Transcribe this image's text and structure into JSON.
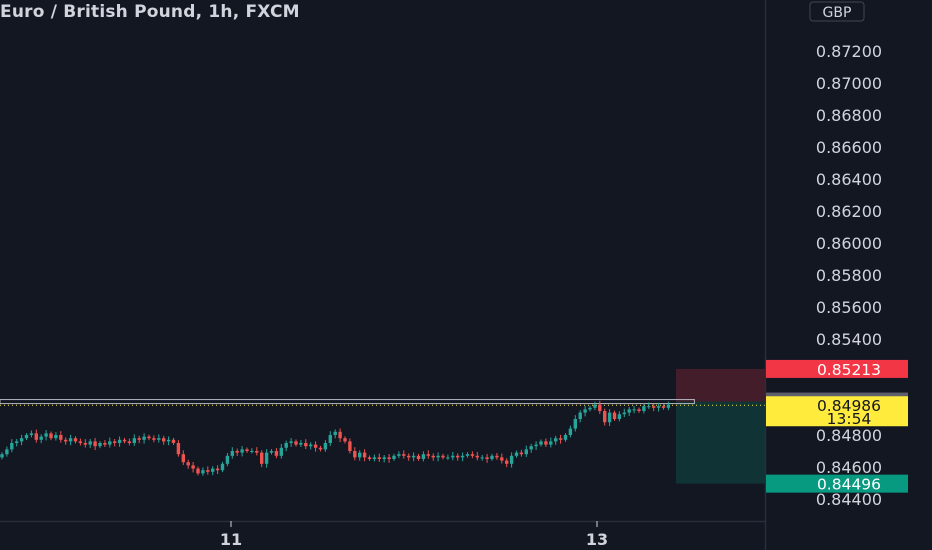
{
  "header": {
    "title": "Euro / British Pound, 1h, FXCM"
  },
  "currency_button": {
    "label": "GBP"
  },
  "colors": {
    "background": "#131722",
    "text": "#d1d4dc",
    "up": "#26a69a",
    "down": "#ef5350",
    "stop_loss_tag": "#f23645",
    "take_profit_tag": "#089981",
    "price_tag": "#ffeb3b",
    "entry_tag": "#5d606b"
  },
  "chart_data": {
    "type": "candlestick",
    "title": "Euro / British Pound, 1h, FXCM",
    "symbol": "EURGBP",
    "timeframe": "1h",
    "source": "FXCM",
    "currency": "GBP",
    "y_axis": {
      "ylim": [
        0.8432,
        0.8752
      ],
      "ticks": [
        "0.87200",
        "0.87000",
        "0.86800",
        "0.86600",
        "0.86400",
        "0.86200",
        "0.86000",
        "0.85800",
        "0.85600",
        "0.85400",
        "0.84800",
        "0.84600",
        "0.84400"
      ],
      "position": "right"
    },
    "x_axis": {
      "ticks": [
        "11",
        "13"
      ]
    },
    "closes": [
      0.8468,
      0.8471,
      0.8475,
      0.8476,
      0.8478,
      0.848,
      0.8481,
      0.8477,
      0.8479,
      0.8481,
      0.8478,
      0.848,
      0.8477,
      0.8476,
      0.8478,
      0.8476,
      0.8475,
      0.8474,
      0.8476,
      0.8473,
      0.8475,
      0.8474,
      0.8476,
      0.8475,
      0.8477,
      0.8476,
      0.8475,
      0.8478,
      0.8477,
      0.8479,
      0.8478,
      0.8477,
      0.8478,
      0.8476,
      0.8477,
      0.8475,
      0.8468,
      0.8463,
      0.8461,
      0.8459,
      0.8456,
      0.8458,
      0.8457,
      0.8459,
      0.8458,
      0.8462,
      0.8467,
      0.847,
      0.8469,
      0.8471,
      0.847,
      0.847,
      0.8469,
      0.8462,
      0.8469,
      0.847,
      0.8467,
      0.8472,
      0.8475,
      0.8476,
      0.8474,
      0.8475,
      0.8473,
      0.8474,
      0.8472,
      0.8471,
      0.8475,
      0.848,
      0.8482,
      0.8478,
      0.8476,
      0.847,
      0.8466,
      0.8469,
      0.8466,
      0.8465,
      0.8466,
      0.8465,
      0.8466,
      0.8465,
      0.8467,
      0.8468,
      0.8467,
      0.8466,
      0.8467,
      0.8465,
      0.8468,
      0.8467,
      0.8466,
      0.8467,
      0.8466,
      0.8466,
      0.8467,
      0.8466,
      0.8467,
      0.8468,
      0.8467,
      0.8466,
      0.8466,
      0.8465,
      0.8467,
      0.8466,
      0.8464,
      0.8462,
      0.8467,
      0.8469,
      0.8468,
      0.8471,
      0.8473,
      0.8474,
      0.8476,
      0.8474,
      0.8476,
      0.8478,
      0.8477,
      0.848,
      0.8484,
      0.849,
      0.8494,
      0.8496,
      0.8497,
      0.8499,
      0.8495,
      0.8488,
      0.8494,
      0.849,
      0.8493,
      0.8494,
      0.8496,
      0.8496,
      0.8495,
      0.8498,
      0.8498,
      0.8497,
      0.8498,
      0.8497,
      0.8499
    ],
    "resistance_line": 0.85009,
    "annotations": {
      "current_price": {
        "value": "0.84986",
        "countdown": "13:54"
      },
      "entry": {
        "value": "0.85009"
      },
      "stop_loss": {
        "value": "0.85213"
      },
      "take_profit": {
        "value": "0.84496"
      }
    },
    "position_box": {
      "type": "short",
      "entry": 0.85009,
      "stop_loss": 0.85213,
      "take_profit": 0.84496
    },
    "grid": false
  }
}
